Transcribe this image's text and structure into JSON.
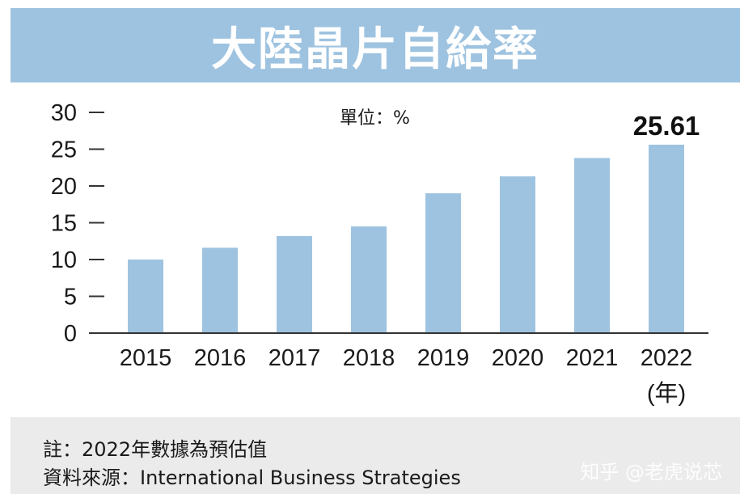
{
  "title": "大陸晶片自給率",
  "unit_label": "單位：%",
  "footer": {
    "note": "註：2022年數據為預估值",
    "source": "資料來源：International Business Strategies"
  },
  "watermark": "知乎 @老虎说芯",
  "chart_data": {
    "type": "bar",
    "title": "大陸晶片自給率",
    "categories": [
      "2015",
      "2016",
      "2017",
      "2018",
      "2019",
      "2020",
      "2021",
      "2022"
    ],
    "values": [
      10.0,
      11.6,
      13.2,
      14.5,
      19.0,
      21.3,
      23.8,
      25.61
    ],
    "x_unit_label": "(年)",
    "ylabel": "",
    "ylim": [
      0,
      30
    ],
    "yticks": [
      0,
      5,
      10,
      15,
      20,
      25,
      30
    ],
    "data_labels": [
      {
        "category": "2022",
        "text": "25.61"
      }
    ],
    "bar_color": "#9ec3e0",
    "grid": false,
    "legend": "none"
  }
}
